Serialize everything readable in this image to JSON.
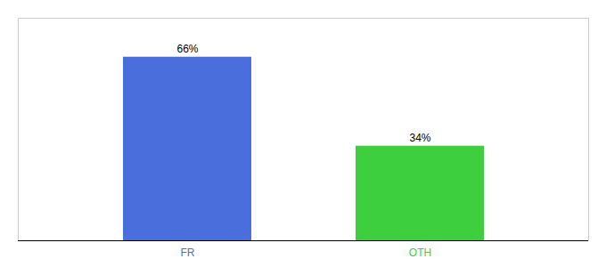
{
  "chart_data": {
    "type": "bar",
    "categories": [
      "FR",
      "OTH"
    ],
    "values": [
      66,
      34
    ],
    "value_labels": [
      "66%",
      "34%"
    ],
    "colors": [
      "#4a6fdc",
      "#3ecf3e"
    ],
    "ylim": [
      0,
      80
    ],
    "data_labels": true,
    "tick_labels": "x",
    "grid": false
  }
}
